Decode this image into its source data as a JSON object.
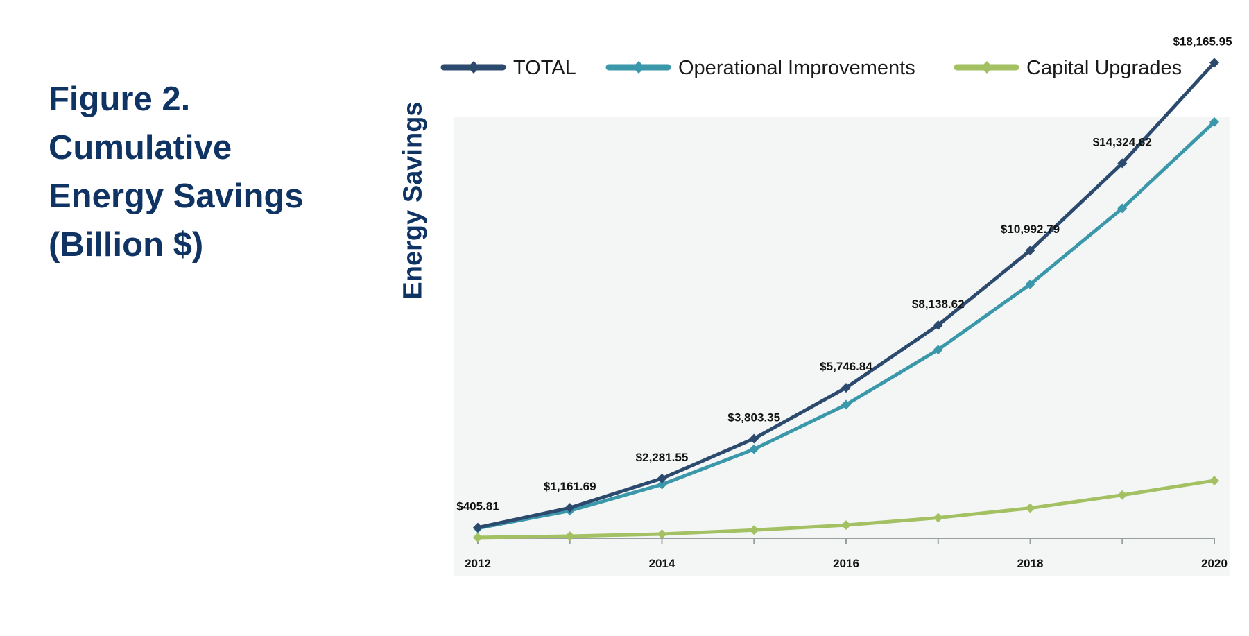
{
  "figure": {
    "title_lines": [
      "Figure 2.",
      "Cumulative",
      "Energy Savings",
      "(Billion $)"
    ]
  },
  "chart_data": {
    "type": "line",
    "ylabel": "Energy Savings",
    "xlabel": "",
    "x": [
      2012,
      2013,
      2014,
      2015,
      2016,
      2017,
      2018,
      2019,
      2020
    ],
    "x_tick_labels": [
      "2012",
      "2014",
      "2016",
      "2018",
      "2020"
    ],
    "ylim": [
      0,
      19500
    ],
    "legend_position": "top",
    "grid": false,
    "series": [
      {
        "name": "TOTAL",
        "color": "#2c4a6e",
        "values": [
          405.81,
          1161.69,
          2281.55,
          3803.35,
          5746.84,
          8138.62,
          10992.79,
          14324.62,
          18165.95
        ],
        "data_labels": [
          "$405.81",
          "$1,161.69",
          "$2,281.55",
          "$3,803.35",
          "$5,746.84",
          "$8,138.62",
          "$10,992.79",
          "$14,324.62",
          "$18,165.95"
        ]
      },
      {
        "name": "Operational Improvements",
        "color": "#3b97aa",
        "values": [
          380,
          1050,
          2050,
          3400,
          5100,
          7200,
          9700,
          12600,
          15900
        ]
      },
      {
        "name": "Capital Upgrades",
        "color": "#a3c163",
        "values": [
          30,
          80,
          160,
          310,
          500,
          780,
          1150,
          1650,
          2200
        ]
      }
    ]
  }
}
